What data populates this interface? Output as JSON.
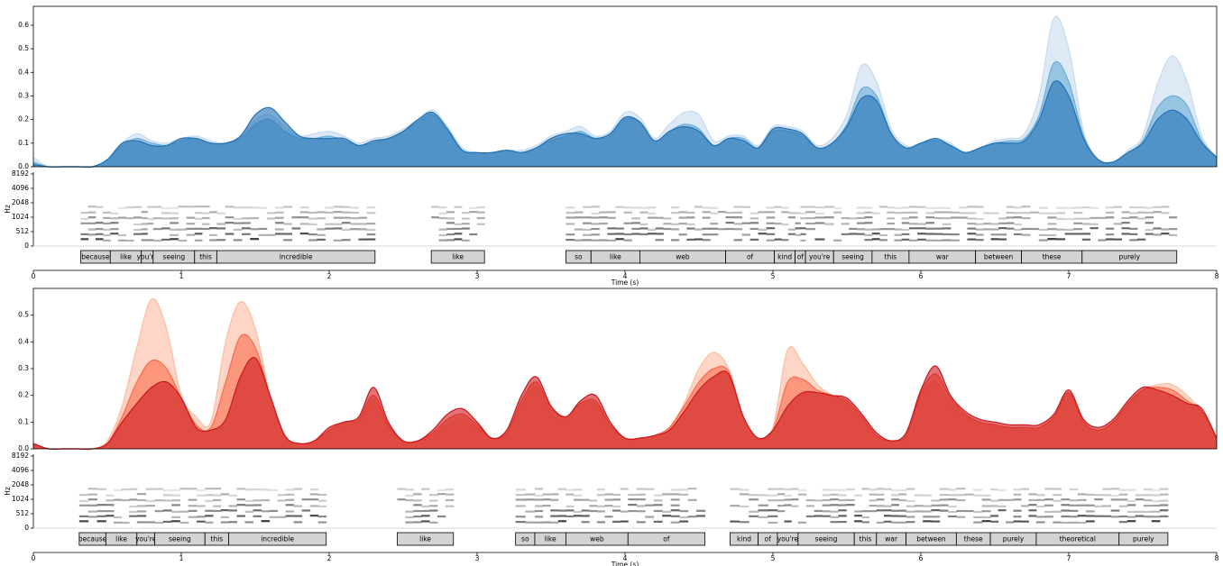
{
  "chart_data": [
    {
      "type": "area",
      "xlabel": "Time (s)",
      "x": [
        0,
        0.1,
        0.2,
        0.3,
        0.4,
        0.5,
        0.6,
        0.7,
        0.8,
        0.9,
        1,
        1.1,
        1.2,
        1.3,
        1.4,
        1.5,
        1.6,
        1.7,
        1.8,
        1.9,
        2,
        2.1,
        2.2,
        2.3,
        2.4,
        2.5,
        2.6,
        2.7,
        2.8,
        2.9,
        3,
        3.1,
        3.2,
        3.3,
        3.4,
        3.5,
        3.6,
        3.7,
        3.8,
        3.9,
        4,
        4.1,
        4.2,
        4.3,
        4.4,
        4.5,
        4.6,
        4.7,
        4.8,
        4.9,
        5,
        5.1,
        5.2,
        5.3,
        5.4,
        5.5,
        5.6,
        5.7,
        5.8,
        5.9,
        6,
        6.1,
        6.2,
        6.3,
        6.4,
        6.5,
        6.6,
        6.7,
        6.8,
        6.9,
        7,
        7.1,
        7.2,
        7.3,
        7.4,
        7.5,
        7.6,
        7.7,
        7.8,
        7.9,
        8
      ],
      "xlim": [
        0,
        8
      ],
      "xticks": [
        0,
        1,
        2,
        3,
        4,
        5,
        6,
        7,
        8
      ],
      "ylim": [
        0,
        0.68
      ],
      "yticks": [
        {
          "value": 0,
          "label": "0.0"
        },
        0.1,
        0.2,
        0.3,
        0.4,
        0.5,
        0.6
      ],
      "series": [
        {
          "color": "#c6dbef",
          "values": [
            0.04,
            0,
            0,
            0,
            0,
            0.03,
            0.1,
            0.14,
            0.11,
            0.1,
            0.12,
            0.13,
            0.11,
            0.1,
            0.13,
            0.2,
            0.22,
            0.17,
            0.13,
            0.14,
            0.15,
            0.13,
            0.1,
            0.12,
            0.13,
            0.16,
            0.2,
            0.24,
            0.17,
            0.08,
            0.06,
            0.06,
            0.07,
            0.07,
            0.09,
            0.13,
            0.15,
            0.17,
            0.13,
            0.15,
            0.23,
            0.21,
            0.12,
            0.18,
            0.23,
            0.22,
            0.11,
            0.13,
            0.13,
            0.09,
            0.17,
            0.17,
            0.15,
            0.09,
            0.12,
            0.22,
            0.43,
            0.36,
            0.16,
            0.09,
            0.1,
            0.12,
            0.1,
            0.06,
            0.08,
            0.11,
            0.12,
            0.14,
            0.3,
            0.63,
            0.5,
            0.15,
            0.03,
            0.02,
            0.07,
            0.13,
            0.35,
            0.47,
            0.36,
            0.13,
            0.04
          ]
        },
        {
          "color": "#6baed6",
          "values": [
            0.02,
            0,
            0,
            0,
            0,
            0.03,
            0.09,
            0.12,
            0.1,
            0.09,
            0.11,
            0.12,
            0.1,
            0.1,
            0.12,
            0.18,
            0.2,
            0.15,
            0.12,
            0.12,
            0.13,
            0.11,
            0.09,
            0.1,
            0.12,
            0.15,
            0.19,
            0.22,
            0.15,
            0.07,
            0.06,
            0.06,
            0.07,
            0.06,
            0.08,
            0.11,
            0.13,
            0.15,
            0.12,
            0.13,
            0.2,
            0.19,
            0.11,
            0.15,
            0.18,
            0.16,
            0.09,
            0.12,
            0.12,
            0.08,
            0.15,
            0.15,
            0.13,
            0.08,
            0.1,
            0.18,
            0.33,
            0.3,
            0.14,
            0.08,
            0.1,
            0.11,
            0.09,
            0.06,
            0.08,
            0.1,
            0.11,
            0.12,
            0.22,
            0.44,
            0.36,
            0.13,
            0.03,
            0.02,
            0.06,
            0.11,
            0.25,
            0.3,
            0.26,
            0.11,
            0.04
          ]
        },
        {
          "color": "#2171b5",
          "values": [
            0.01,
            0,
            0,
            0,
            0,
            0.03,
            0.1,
            0.11,
            0.09,
            0.09,
            0.12,
            0.12,
            0.1,
            0.1,
            0.13,
            0.22,
            0.25,
            0.19,
            0.13,
            0.12,
            0.12,
            0.12,
            0.09,
            0.11,
            0.12,
            0.15,
            0.2,
            0.23,
            0.16,
            0.07,
            0.06,
            0.06,
            0.07,
            0.06,
            0.08,
            0.12,
            0.14,
            0.14,
            0.12,
            0.14,
            0.21,
            0.19,
            0.11,
            0.15,
            0.17,
            0.15,
            0.09,
            0.12,
            0.11,
            0.08,
            0.16,
            0.16,
            0.14,
            0.08,
            0.1,
            0.17,
            0.29,
            0.28,
            0.14,
            0.08,
            0.1,
            0.12,
            0.09,
            0.06,
            0.08,
            0.1,
            0.1,
            0.11,
            0.2,
            0.36,
            0.3,
            0.12,
            0.03,
            0.02,
            0.06,
            0.1,
            0.2,
            0.24,
            0.2,
            0.1,
            0.04
          ]
        }
      ],
      "spectrogram": {
        "ylabel": "Hz",
        "ylim": [
          0,
          8192
        ],
        "yticks": [
          0,
          512,
          1024,
          2048,
          4096,
          8192
        ],
        "scale": "symlog"
      },
      "words": [
        {
          "text": "because",
          "start": 0.32,
          "end": 0.52
        },
        {
          "text": "like",
          "start": 0.52,
          "end": 0.73
        },
        {
          "text": "you're",
          "start": 0.73,
          "end": 0.81
        },
        {
          "text": "seeing",
          "start": 0.81,
          "end": 1.09
        },
        {
          "text": "this",
          "start": 1.09,
          "end": 1.24
        },
        {
          "text": "incredible",
          "start": 1.24,
          "end": 2.31
        },
        {
          "text": "like",
          "start": 2.69,
          "end": 3.05
        },
        {
          "text": "so",
          "start": 3.6,
          "end": 3.77
        },
        {
          "text": "like",
          "start": 3.77,
          "end": 4.1
        },
        {
          "text": "web",
          "start": 4.1,
          "end": 4.68
        },
        {
          "text": "of",
          "start": 4.68,
          "end": 5.01
        },
        {
          "text": "kind",
          "start": 5.01,
          "end": 5.15
        },
        {
          "text": "of",
          "start": 5.15,
          "end": 5.22
        },
        {
          "text": "you're",
          "start": 5.22,
          "end": 5.41
        },
        {
          "text": "seeing",
          "start": 5.41,
          "end": 5.67
        },
        {
          "text": "this",
          "start": 5.67,
          "end": 5.92
        },
        {
          "text": "war",
          "start": 5.92,
          "end": 6.37
        },
        {
          "text": "between",
          "start": 6.37,
          "end": 6.68
        },
        {
          "text": "these",
          "start": 6.68,
          "end": 7.09
        },
        {
          "text": "purely",
          "start": 7.09,
          "end": 7.73
        }
      ]
    },
    {
      "type": "area",
      "xlabel": "Time (s)",
      "x": [
        0,
        0.1,
        0.2,
        0.3,
        0.4,
        0.5,
        0.6,
        0.7,
        0.8,
        0.9,
        1,
        1.1,
        1.2,
        1.3,
        1.4,
        1.5,
        1.6,
        1.7,
        1.8,
        1.9,
        2,
        2.1,
        2.2,
        2.3,
        2.4,
        2.5,
        2.6,
        2.7,
        2.8,
        2.9,
        3,
        3.1,
        3.2,
        3.3,
        3.4,
        3.5,
        3.6,
        3.7,
        3.8,
        3.9,
        4,
        4.1,
        4.2,
        4.3,
        4.4,
        4.5,
        4.6,
        4.7,
        4.8,
        4.9,
        5,
        5.1,
        5.2,
        5.3,
        5.4,
        5.5,
        5.6,
        5.7,
        5.8,
        5.9,
        6,
        6.1,
        6.2,
        6.3,
        6.4,
        6.5,
        6.6,
        6.7,
        6.8,
        6.9,
        7,
        7.1,
        7.2,
        7.3,
        7.4,
        7.5,
        7.6,
        7.7,
        7.8,
        7.9,
        8
      ],
      "xlim": [
        0,
        8
      ],
      "xticks": [
        0,
        1,
        2,
        3,
        4,
        5,
        6,
        7,
        8
      ],
      "ylim": [
        0,
        0.6
      ],
      "yticks": [
        {
          "value": 0,
          "label": "0.0"
        },
        0.1,
        0.2,
        0.3,
        0.4,
        0.5
      ],
      "series": [
        {
          "color": "#fcbba1",
          "values": [
            0.02,
            0,
            0,
            0,
            0,
            0.03,
            0.16,
            0.38,
            0.56,
            0.45,
            0.2,
            0.12,
            0.1,
            0.4,
            0.55,
            0.45,
            0.2,
            0.05,
            0.02,
            0.03,
            0.07,
            0.09,
            0.1,
            0.18,
            0.08,
            0.03,
            0.03,
            0.05,
            0.09,
            0.11,
            0.08,
            0.04,
            0.06,
            0.16,
            0.23,
            0.13,
            0.11,
            0.16,
            0.17,
            0.08,
            0.04,
            0.04,
            0.05,
            0.08,
            0.17,
            0.3,
            0.36,
            0.3,
            0.12,
            0.04,
            0.08,
            0.37,
            0.32,
            0.24,
            0.2,
            0.17,
            0.12,
            0.05,
            0.03,
            0.05,
            0.2,
            0.25,
            0.17,
            0.12,
            0.1,
            0.08,
            0.08,
            0.07,
            0.08,
            0.12,
            0.2,
            0.1,
            0.07,
            0.1,
            0.16,
            0.22,
            0.24,
            0.24,
            0.2,
            0.14,
            0.04
          ]
        },
        {
          "color": "#fb6a4a",
          "values": [
            0.02,
            0,
            0,
            0,
            0,
            0.02,
            0.12,
            0.25,
            0.33,
            0.3,
            0.19,
            0.09,
            0.08,
            0.25,
            0.42,
            0.38,
            0.2,
            0.05,
            0.02,
            0.03,
            0.07,
            0.1,
            0.11,
            0.2,
            0.09,
            0.03,
            0.03,
            0.06,
            0.11,
            0.13,
            0.09,
            0.04,
            0.06,
            0.18,
            0.25,
            0.15,
            0.12,
            0.17,
            0.18,
            0.09,
            0.04,
            0.04,
            0.05,
            0.08,
            0.16,
            0.25,
            0.3,
            0.29,
            0.12,
            0.04,
            0.07,
            0.25,
            0.26,
            0.22,
            0.2,
            0.18,
            0.12,
            0.05,
            0.03,
            0.05,
            0.21,
            0.28,
            0.19,
            0.13,
            0.1,
            0.09,
            0.08,
            0.08,
            0.08,
            0.12,
            0.21,
            0.1,
            0.07,
            0.1,
            0.17,
            0.22,
            0.23,
            0.22,
            0.18,
            0.14,
            0.04
          ]
        },
        {
          "color": "#cb181d",
          "values": [
            0.02,
            0,
            0,
            0,
            0,
            0.02,
            0.1,
            0.17,
            0.23,
            0.25,
            0.19,
            0.08,
            0.07,
            0.11,
            0.27,
            0.34,
            0.2,
            0.05,
            0.02,
            0.03,
            0.08,
            0.1,
            0.12,
            0.23,
            0.1,
            0.03,
            0.03,
            0.07,
            0.13,
            0.15,
            0.1,
            0.04,
            0.07,
            0.2,
            0.27,
            0.16,
            0.12,
            0.18,
            0.2,
            0.1,
            0.04,
            0.04,
            0.05,
            0.07,
            0.14,
            0.22,
            0.27,
            0.28,
            0.12,
            0.04,
            0.07,
            0.16,
            0.21,
            0.21,
            0.2,
            0.19,
            0.13,
            0.06,
            0.03,
            0.06,
            0.22,
            0.31,
            0.2,
            0.14,
            0.11,
            0.1,
            0.09,
            0.09,
            0.09,
            0.13,
            0.22,
            0.11,
            0.08,
            0.11,
            0.18,
            0.23,
            0.22,
            0.2,
            0.17,
            0.15,
            0.04
          ]
        }
      ],
      "spectrogram": {
        "ylabel": "Hz",
        "ylim": [
          0,
          8192
        ],
        "yticks": [
          0,
          512,
          1024,
          2048,
          4096,
          8192
        ],
        "scale": "symlog"
      },
      "words": [
        {
          "text": "because",
          "start": 0.31,
          "end": 0.49
        },
        {
          "text": "like",
          "start": 0.49,
          "end": 0.7
        },
        {
          "text": "you're",
          "start": 0.7,
          "end": 0.82
        },
        {
          "text": "seeing",
          "start": 0.82,
          "end": 1.16
        },
        {
          "text": "this",
          "start": 1.16,
          "end": 1.32
        },
        {
          "text": "incredible",
          "start": 1.32,
          "end": 1.98
        },
        {
          "text": "like",
          "start": 2.46,
          "end": 2.84
        },
        {
          "text": "so",
          "start": 3.26,
          "end": 3.39
        },
        {
          "text": "like",
          "start": 3.39,
          "end": 3.6
        },
        {
          "text": "web",
          "start": 3.6,
          "end": 4.02
        },
        {
          "text": "of",
          "start": 4.02,
          "end": 4.54
        },
        {
          "text": "kind",
          "start": 4.71,
          "end": 4.9
        },
        {
          "text": "of",
          "start": 4.9,
          "end": 5.03
        },
        {
          "text": "you're",
          "start": 5.03,
          "end": 5.17
        },
        {
          "text": "seeing",
          "start": 5.17,
          "end": 5.55
        },
        {
          "text": "this",
          "start": 5.55,
          "end": 5.7
        },
        {
          "text": "war",
          "start": 5.7,
          "end": 5.9
        },
        {
          "text": "between",
          "start": 5.9,
          "end": 6.24
        },
        {
          "text": "these",
          "start": 6.24,
          "end": 6.47
        },
        {
          "text": "purely",
          "start": 6.47,
          "end": 6.78
        },
        {
          "text": "theoretical",
          "start": 6.78,
          "end": 7.34
        },
        {
          "text": "purely",
          "start": 7.34,
          "end": 7.67
        }
      ]
    }
  ]
}
